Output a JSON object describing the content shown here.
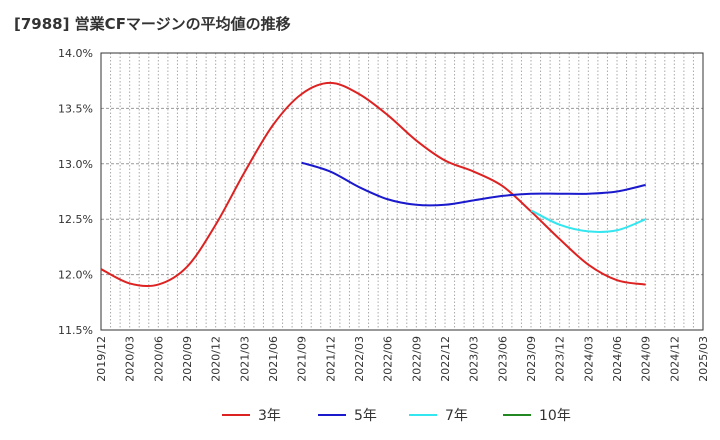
{
  "title": "[7988]  営業CFマージンの平均値の推移",
  "chart_data": {
    "type": "line",
    "title": "[7988]  営業CFマージンの平均値の推移",
    "xlabel": "",
    "ylabel": "",
    "x_ticks": [
      "2019/12",
      "2020/03",
      "2020/06",
      "2020/09",
      "2020/12",
      "2021/03",
      "2021/06",
      "2021/09",
      "2021/12",
      "2022/03",
      "2022/06",
      "2022/09",
      "2022/12",
      "2023/03",
      "2023/06",
      "2023/09",
      "2023/12",
      "2024/03",
      "2024/06",
      "2024/09",
      "2024/12",
      "2025/03"
    ],
    "y_ticks": [
      "11.5%",
      "12.0%",
      "12.5%",
      "13.0%",
      "13.5%",
      "14.0%"
    ],
    "ylim": [
      11.5,
      14.0
    ],
    "grid": true,
    "legend_position": "bottom",
    "series": [
      {
        "name": "3年",
        "color": "#dd2222",
        "x": [
          "2019/12",
          "2020/03",
          "2020/06",
          "2020/09",
          "2020/12",
          "2021/03",
          "2021/06",
          "2021/09",
          "2021/12",
          "2022/03",
          "2022/06",
          "2022/09",
          "2022/12",
          "2023/03",
          "2023/06",
          "2023/09",
          "2023/12",
          "2024/03",
          "2024/06",
          "2024/09"
        ],
        "values": [
          12.05,
          11.92,
          11.91,
          12.07,
          12.45,
          12.92,
          13.35,
          13.63,
          13.73,
          13.63,
          13.44,
          13.21,
          13.03,
          12.93,
          12.8,
          12.57,
          12.32,
          12.09,
          11.95,
          11.91
        ]
      },
      {
        "name": "5年",
        "color": "#1a1acc",
        "x": [
          "2021/09",
          "2021/12",
          "2022/03",
          "2022/06",
          "2022/09",
          "2022/12",
          "2023/03",
          "2023/06",
          "2023/09",
          "2023/12",
          "2024/03",
          "2024/06",
          "2024/09"
        ],
        "values": [
          13.01,
          12.93,
          12.79,
          12.68,
          12.63,
          12.63,
          12.67,
          12.71,
          12.73,
          12.73,
          12.73,
          12.75,
          12.81
        ]
      },
      {
        "name": "7年",
        "color": "#33e6f0",
        "x": [
          "2023/09",
          "2023/12",
          "2024/03",
          "2024/06",
          "2024/09"
        ],
        "values": [
          12.58,
          12.45,
          12.39,
          12.4,
          12.5
        ]
      },
      {
        "name": "10年",
        "color": "#228822",
        "x": [],
        "values": []
      }
    ]
  }
}
